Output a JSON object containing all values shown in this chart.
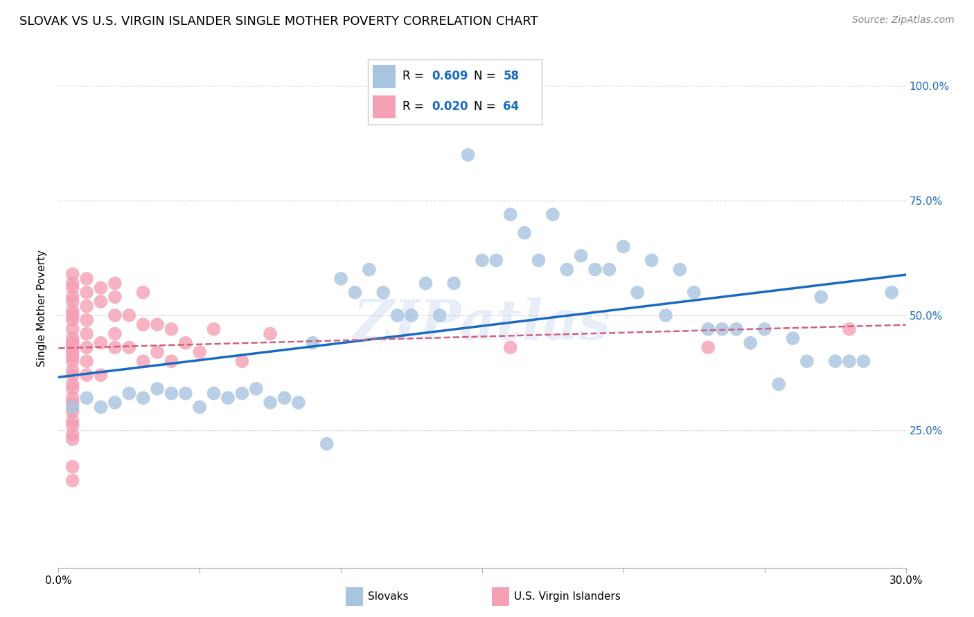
{
  "title": "SLOVAK VS U.S. VIRGIN ISLANDER SINGLE MOTHER POVERTY CORRELATION CHART",
  "source": "Source: ZipAtlas.com",
  "ylabel": "Single Mother Poverty",
  "xlim": [
    0.0,
    0.3
  ],
  "ylim": [
    -0.05,
    1.08
  ],
  "xticks": [
    0.0,
    0.05,
    0.1,
    0.15,
    0.2,
    0.25,
    0.3
  ],
  "xticklabels": [
    "0.0%",
    "",
    "",
    "",
    "",
    "",
    "30.0%"
  ],
  "ytick_positions": [
    0.25,
    0.5,
    0.75,
    1.0
  ],
  "ytick_labels": [
    "25.0%",
    "50.0%",
    "75.0%",
    "100.0%"
  ],
  "slovak_color": "#a8c4e0",
  "vi_color": "#f4a0b5",
  "slovak_line_color": "#1a6bbf",
  "vi_line_color": "#d06080",
  "watermark": "ZIPatlas",
  "background_color": "#ffffff",
  "grid_color": "#cccccc",
  "slovak_x": [
    0.005,
    0.01,
    0.015,
    0.02,
    0.025,
    0.03,
    0.035,
    0.04,
    0.045,
    0.05,
    0.055,
    0.06,
    0.065,
    0.07,
    0.075,
    0.08,
    0.085,
    0.09,
    0.095,
    0.1,
    0.105,
    0.11,
    0.115,
    0.12,
    0.125,
    0.13,
    0.135,
    0.14,
    0.145,
    0.15,
    0.155,
    0.16,
    0.165,
    0.17,
    0.175,
    0.18,
    0.185,
    0.19,
    0.195,
    0.2,
    0.205,
    0.21,
    0.215,
    0.22,
    0.225,
    0.23,
    0.235,
    0.24,
    0.245,
    0.25,
    0.255,
    0.26,
    0.265,
    0.27,
    0.275,
    0.28,
    0.285,
    0.295
  ],
  "slovak_y": [
    0.3,
    0.32,
    0.3,
    0.31,
    0.33,
    0.32,
    0.34,
    0.33,
    0.33,
    0.3,
    0.33,
    0.32,
    0.33,
    0.34,
    0.31,
    0.32,
    0.31,
    0.44,
    0.22,
    0.58,
    0.55,
    0.6,
    0.55,
    0.5,
    0.5,
    0.57,
    0.5,
    0.57,
    0.85,
    0.62,
    0.62,
    0.72,
    0.68,
    0.62,
    0.72,
    0.6,
    0.63,
    0.6,
    0.6,
    0.65,
    0.55,
    0.62,
    0.5,
    0.6,
    0.55,
    0.47,
    0.47,
    0.47,
    0.44,
    0.47,
    0.35,
    0.45,
    0.4,
    0.54,
    0.4,
    0.4,
    0.4,
    0.55
  ],
  "vi_x": [
    0.005,
    0.005,
    0.005,
    0.005,
    0.005,
    0.005,
    0.005,
    0.005,
    0.005,
    0.005,
    0.005,
    0.005,
    0.005,
    0.005,
    0.005,
    0.005,
    0.005,
    0.005,
    0.005,
    0.005,
    0.005,
    0.005,
    0.005,
    0.005,
    0.005,
    0.005,
    0.005,
    0.005,
    0.005,
    0.005,
    0.01,
    0.01,
    0.01,
    0.01,
    0.01,
    0.01,
    0.01,
    0.01,
    0.015,
    0.015,
    0.015,
    0.015,
    0.02,
    0.02,
    0.02,
    0.02,
    0.02,
    0.025,
    0.025,
    0.03,
    0.03,
    0.03,
    0.035,
    0.035,
    0.04,
    0.04,
    0.045,
    0.05,
    0.055,
    0.065,
    0.075,
    0.16,
    0.23,
    0.28
  ],
  "vi_y": [
    0.59,
    0.57,
    0.56,
    0.54,
    0.53,
    0.51,
    0.5,
    0.49,
    0.47,
    0.45,
    0.44,
    0.44,
    0.43,
    0.43,
    0.42,
    0.41,
    0.4,
    0.38,
    0.37,
    0.35,
    0.34,
    0.32,
    0.31,
    0.29,
    0.27,
    0.26,
    0.24,
    0.23,
    0.17,
    0.14,
    0.58,
    0.55,
    0.52,
    0.49,
    0.46,
    0.43,
    0.4,
    0.37,
    0.56,
    0.53,
    0.44,
    0.37,
    0.57,
    0.54,
    0.5,
    0.46,
    0.43,
    0.5,
    0.43,
    0.55,
    0.48,
    0.4,
    0.48,
    0.42,
    0.47,
    0.4,
    0.44,
    0.42,
    0.47,
    0.4,
    0.46,
    0.43,
    0.43,
    0.47
  ],
  "legend_R_slovak": "0.609",
  "legend_N_slovak": "58",
  "legend_R_vi": "0.020",
  "legend_N_vi": "64"
}
